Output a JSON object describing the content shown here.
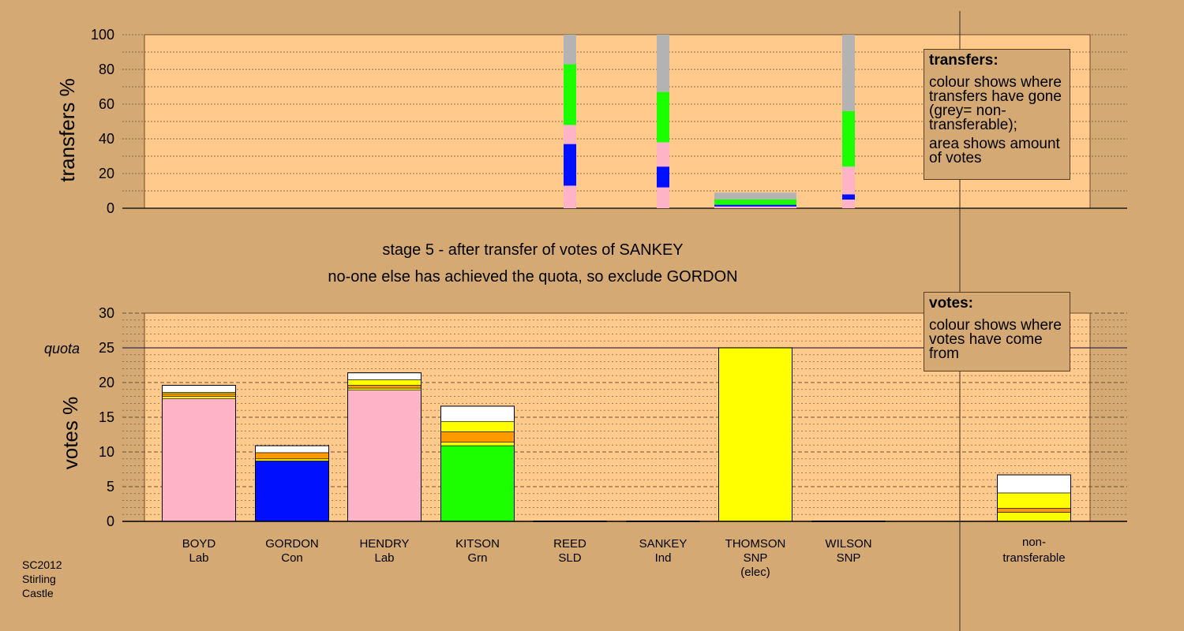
{
  "stage_line1": "stage 5 - after transfer of votes of SANKEY",
  "stage_line2": "no-one else has achieved the quota, so exclude GORDON",
  "legend_transfers": {
    "title": "transfers:",
    "line1": "colour shows where transfers have gone (grey= non-transferable);",
    "line2": "area shows amount of votes"
  },
  "legend_votes": {
    "title": "votes:",
    "line1": "colour shows where votes have come from"
  },
  "footer": [
    "SC2012",
    "Stirling",
    "Castle"
  ],
  "colors": {
    "background": "#d4a974",
    "plot": "#ffca8c",
    "grey": "#b3b3b3",
    "green": "#1bff00",
    "pink": "#ffb3c6",
    "blue": "#0010ff",
    "yellow": "#ffff00",
    "orange": "#ff9900",
    "white": "#ffffff"
  },
  "chart_data": [
    {
      "type": "bar",
      "ylabel": "transfers %",
      "ylim": [
        0,
        100
      ],
      "yticks": [
        0,
        20,
        40,
        60,
        80,
        100
      ],
      "stacked": true,
      "bars": [
        {
          "candidate": "REED",
          "segments": [
            {
              "color": "pink",
              "from": 0,
              "to": 13
            },
            {
              "color": "blue",
              "from": 13,
              "to": 37
            },
            {
              "color": "pink",
              "from": 37,
              "to": 48
            },
            {
              "color": "green",
              "from": 48,
              "to": 83
            },
            {
              "color": "grey",
              "from": 83,
              "to": 100
            }
          ]
        },
        {
          "candidate": "SANKEY",
          "segments": [
            {
              "color": "pink",
              "from": 0,
              "to": 12
            },
            {
              "color": "blue",
              "from": 12,
              "to": 24
            },
            {
              "color": "pink",
              "from": 24,
              "to": 38
            },
            {
              "color": "green",
              "from": 38,
              "to": 67
            },
            {
              "color": "grey",
              "from": 67,
              "to": 100
            }
          ]
        },
        {
          "candidate": "THOMSON",
          "segments": [
            {
              "color": "pink",
              "from": 0,
              "to": 1
            },
            {
              "color": "blue",
              "from": 1,
              "to": 2
            },
            {
              "color": "green",
              "from": 2,
              "to": 5
            },
            {
              "color": "grey",
              "from": 5,
              "to": 9
            }
          ]
        },
        {
          "candidate": "WILSON",
          "segments": [
            {
              "color": "pink",
              "from": 0,
              "to": 5
            },
            {
              "color": "blue",
              "from": 5,
              "to": 8
            },
            {
              "color": "pink",
              "from": 8,
              "to": 24
            },
            {
              "color": "green",
              "from": 24,
              "to": 56
            },
            {
              "color": "grey",
              "from": 56,
              "to": 100
            }
          ]
        }
      ]
    },
    {
      "type": "bar",
      "ylabel": "votes %",
      "ylim": [
        0,
        30
      ],
      "yticks": [
        0,
        5,
        10,
        15,
        20,
        25,
        30
      ],
      "quota": 25,
      "quota_label": "quota",
      "stacked": true,
      "categories": [
        {
          "name": "BOYD",
          "party": "Lab",
          "extra": ""
        },
        {
          "name": "GORDON",
          "party": "Con",
          "extra": ""
        },
        {
          "name": "HENDRY",
          "party": "Lab",
          "extra": ""
        },
        {
          "name": "KITSON",
          "party": "Grn",
          "extra": ""
        },
        {
          "name": "REED",
          "party": "SLD",
          "extra": ""
        },
        {
          "name": "SANKEY",
          "party": "Ind",
          "extra": ""
        },
        {
          "name": "THOMSON",
          "party": "SNP",
          "extra": "(elec)"
        },
        {
          "name": "WILSON",
          "party": "SNP",
          "extra": ""
        }
      ],
      "nontransferable_label": [
        "non-",
        "transferable"
      ],
      "bars": [
        {
          "candidate": "BOYD",
          "segments": [
            {
              "color": "pink",
              "from": 0,
              "to": 17.7
            },
            {
              "color": "yellow",
              "from": 17.7,
              "to": 18.0
            },
            {
              "color": "orange",
              "from": 18.0,
              "to": 18.4
            },
            {
              "color": "yellow",
              "from": 18.4,
              "to": 18.6
            },
            {
              "color": "white",
              "from": 18.6,
              "to": 19.6
            }
          ]
        },
        {
          "candidate": "GORDON",
          "segments": [
            {
              "color": "blue",
              "from": 0,
              "to": 8.7
            },
            {
              "color": "yellow",
              "from": 8.7,
              "to": 9.0
            },
            {
              "color": "orange",
              "from": 9.0,
              "to": 9.9
            },
            {
              "color": "white",
              "from": 9.9,
              "to": 10.9
            }
          ]
        },
        {
          "candidate": "HENDRY",
          "segments": [
            {
              "color": "pink",
              "from": 0,
              "to": 18.9
            },
            {
              "color": "yellow",
              "from": 18.9,
              "to": 19.2
            },
            {
              "color": "orange",
              "from": 19.2,
              "to": 19.6
            },
            {
              "color": "yellow",
              "from": 19.6,
              "to": 20.4
            },
            {
              "color": "white",
              "from": 20.4,
              "to": 21.4
            }
          ]
        },
        {
          "candidate": "KITSON",
          "segments": [
            {
              "color": "green",
              "from": 0,
              "to": 10.9
            },
            {
              "color": "yellow",
              "from": 10.9,
              "to": 11.4
            },
            {
              "color": "orange",
              "from": 11.4,
              "to": 12.9
            },
            {
              "color": "yellow",
              "from": 12.9,
              "to": 14.4
            },
            {
              "color": "white",
              "from": 14.4,
              "to": 16.6
            }
          ]
        },
        {
          "candidate": "REED",
          "segments": []
        },
        {
          "candidate": "SANKEY",
          "segments": []
        },
        {
          "candidate": "THOMSON",
          "segments": [
            {
              "color": "yellow",
              "from": 0,
              "to": 25.0
            }
          ]
        },
        {
          "candidate": "WILSON",
          "segments": []
        },
        {
          "candidate": "non-transferable",
          "segments": [
            {
              "color": "yellow",
              "from": 0,
              "to": 1.3
            },
            {
              "color": "orange",
              "from": 1.3,
              "to": 1.9
            },
            {
              "color": "yellow",
              "from": 1.9,
              "to": 4.1
            },
            {
              "color": "white",
              "from": 4.1,
              "to": 6.7
            }
          ]
        }
      ]
    }
  ]
}
